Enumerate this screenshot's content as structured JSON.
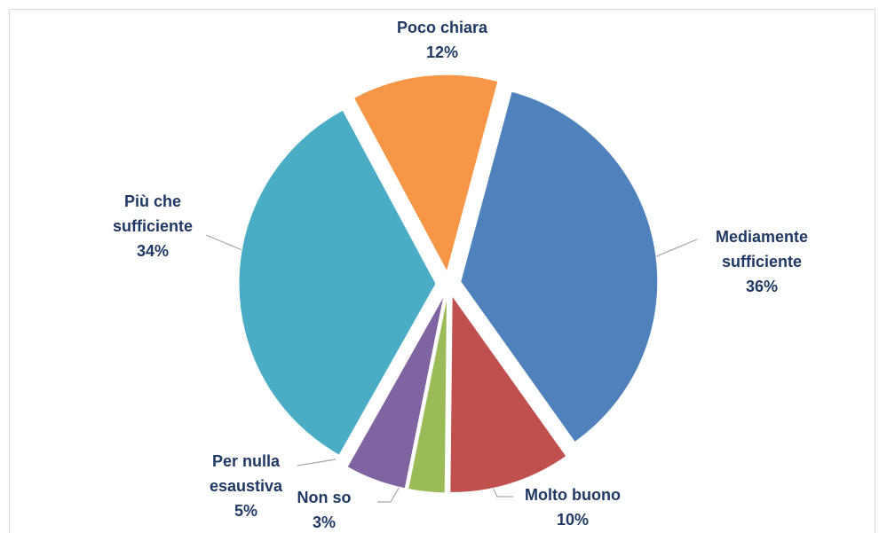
{
  "chart_data": {
    "type": "pie",
    "categories": [
      "Mediamente sufficiente",
      "Molto buono",
      "Non so",
      "Per nulla esaustiva",
      "Più che sufficiente",
      "Poco chiara"
    ],
    "values": [
      36,
      10,
      3,
      5,
      34,
      12
    ],
    "value_labels": [
      "36%",
      "10%",
      "3%",
      "5%",
      "34%",
      "12%"
    ],
    "colors": [
      "#4f81bd",
      "#c0504d",
      "#9bbb59",
      "#8064a2",
      "#4bacc6",
      "#f79646"
    ]
  }
}
